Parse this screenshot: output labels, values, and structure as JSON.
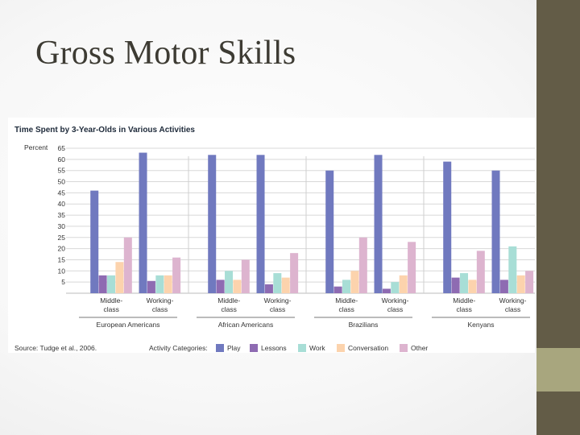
{
  "slide": {
    "title": "Gross Motor Skills",
    "colors": {
      "sidebar": "#635c47",
      "sidebar_accent": "#a8a67e",
      "title_text": "#3d3b33"
    }
  },
  "chart_data": {
    "type": "bar",
    "title": "Time Spent by 3-Year-Olds in Various Activities",
    "ylabel": "Percent",
    "ylim": [
      0,
      65
    ],
    "yticks": [
      5,
      10,
      15,
      20,
      25,
      30,
      35,
      40,
      45,
      50,
      55,
      60,
      65
    ],
    "grid": true,
    "groups": [
      {
        "label": "European Americans",
        "categories": [
          {
            "label": [
              "Middle-",
              "class"
            ],
            "values": [
              46,
              8,
              8,
              14,
              25
            ]
          },
          {
            "label": [
              "Working-",
              "class"
            ],
            "values": [
              63,
              5.5,
              8,
              8,
              16
            ]
          }
        ]
      },
      {
        "label": "African Americans",
        "categories": [
          {
            "label": [
              "Middle-",
              "class"
            ],
            "values": [
              62,
              6,
              10,
              6,
              15
            ]
          },
          {
            "label": [
              "Working-",
              "class"
            ],
            "values": [
              62,
              4,
              9,
              7,
              18
            ]
          }
        ]
      },
      {
        "label": "Brazilians",
        "categories": [
          {
            "label": [
              "Middle-",
              "class"
            ],
            "values": [
              55,
              3,
              6,
              10,
              25
            ]
          },
          {
            "label": [
              "Working-",
              "class"
            ],
            "values": [
              62,
              2,
              5,
              8,
              23
            ]
          }
        ]
      },
      {
        "label": "Kenyans",
        "categories": [
          {
            "label": [
              "Middle-",
              "class"
            ],
            "values": [
              59,
              7,
              9,
              6,
              19
            ]
          },
          {
            "label": [
              "Working-",
              "class"
            ],
            "values": [
              55,
              6,
              21,
              8,
              10
            ]
          }
        ]
      }
    ],
    "series": [
      {
        "name": "Play",
        "color": "#7079bf"
      },
      {
        "name": "Lessons",
        "color": "#8e6bb2"
      },
      {
        "name": "Work",
        "color": "#a8ded6"
      },
      {
        "name": "Conversation",
        "color": "#fcd3ad"
      },
      {
        "name": "Other",
        "color": "#ddb4cf"
      }
    ],
    "source": "Source: Tudge et al., 2006.",
    "legend_title": "Activity Categories:",
    "legend_position": "bottom"
  }
}
